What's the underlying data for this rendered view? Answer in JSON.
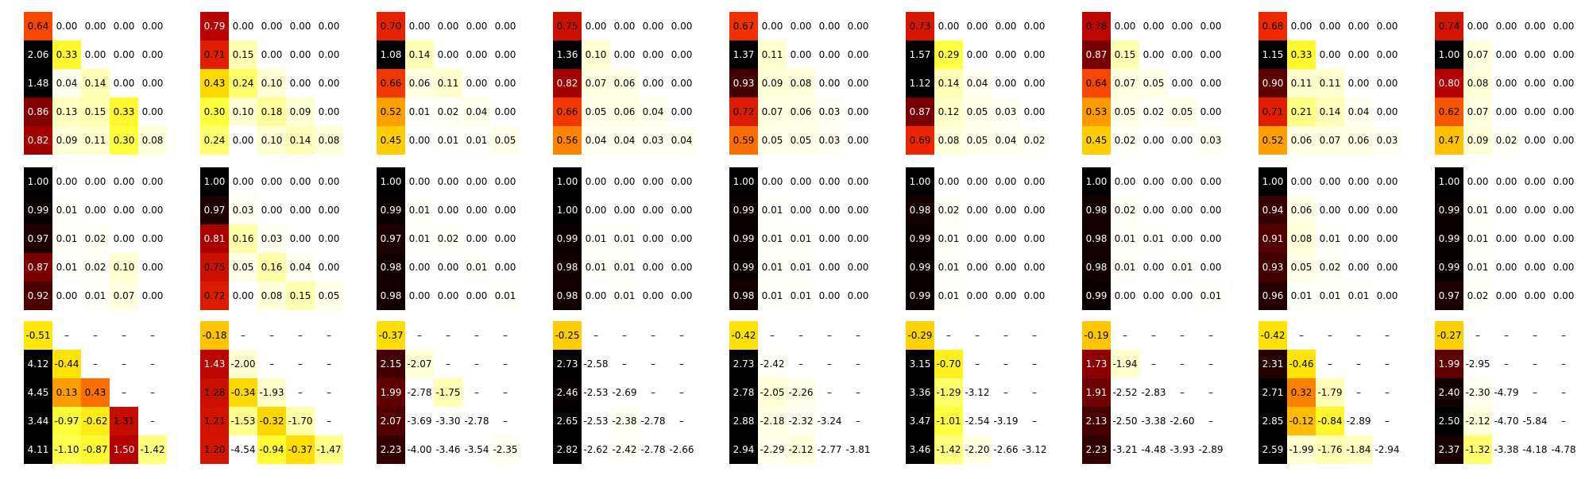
{
  "chart_data": {
    "type": "heatmap",
    "colormap": "hot_r",
    "grid": "3 rows x 9 columns of 5x5 lower-triangular annotated heatmaps",
    "dash_symbol": "–",
    "rows": [
      {
        "color_range": [
          0,
          1
        ],
        "panels": [
          [
            [
              0.64,
              0.0,
              0.0,
              0.0,
              0.0
            ],
            [
              2.06,
              0.33,
              0.0,
              0.0,
              0.0
            ],
            [
              1.48,
              0.04,
              0.14,
              0.0,
              0.0
            ],
            [
              0.86,
              0.13,
              0.15,
              0.33,
              0.0
            ],
            [
              0.82,
              0.09,
              0.11,
              0.3,
              0.08
            ]
          ],
          [
            [
              0.79,
              0.0,
              0.0,
              0.0,
              0.0
            ],
            [
              0.71,
              0.15,
              0.0,
              0.0,
              0.0
            ],
            [
              0.43,
              0.24,
              0.1,
              0.0,
              0.0
            ],
            [
              0.3,
              0.1,
              0.18,
              0.09,
              0.0
            ],
            [
              0.24,
              0.0,
              0.1,
              0.14,
              0.08
            ]
          ],
          [
            [
              0.7,
              0.0,
              0.0,
              0.0,
              0.0
            ],
            [
              1.08,
              0.14,
              0.0,
              0.0,
              0.0
            ],
            [
              0.66,
              0.06,
              0.11,
              0.0,
              0.0
            ],
            [
              0.52,
              0.01,
              0.02,
              0.04,
              0.0
            ],
            [
              0.45,
              0.0,
              0.01,
              0.01,
              0.05
            ]
          ],
          [
            [
              0.75,
              0.0,
              0.0,
              0.0,
              0.0
            ],
            [
              1.36,
              0.1,
              0.0,
              0.0,
              0.0
            ],
            [
              0.82,
              0.07,
              0.06,
              0.0,
              0.0
            ],
            [
              0.66,
              0.05,
              0.06,
              0.04,
              0.0
            ],
            [
              0.56,
              0.04,
              0.04,
              0.03,
              0.04
            ]
          ],
          [
            [
              0.67,
              0.0,
              0.0,
              0.0,
              0.0
            ],
            [
              1.37,
              0.11,
              0.0,
              0.0,
              0.0
            ],
            [
              0.93,
              0.09,
              0.08,
              0.0,
              0.0
            ],
            [
              0.72,
              0.07,
              0.06,
              0.03,
              0.0
            ],
            [
              0.59,
              0.05,
              0.05,
              0.03,
              0.0
            ]
          ],
          [
            [
              0.73,
              0.0,
              0.0,
              0.0,
              0.0
            ],
            [
              1.57,
              0.29,
              0.0,
              0.0,
              0.0
            ],
            [
              1.12,
              0.14,
              0.04,
              0.0,
              0.0
            ],
            [
              0.87,
              0.12,
              0.05,
              0.03,
              0.0
            ],
            [
              0.69,
              0.08,
              0.05,
              0.04,
              0.02
            ]
          ],
          [
            [
              0.78,
              0.0,
              0.0,
              0.0,
              0.0
            ],
            [
              0.87,
              0.15,
              0.0,
              0.0,
              0.0
            ],
            [
              0.64,
              0.07,
              0.05,
              0.0,
              0.0
            ],
            [
              0.53,
              0.05,
              0.02,
              0.05,
              0.0
            ],
            [
              0.45,
              0.02,
              0.0,
              0.0,
              0.03
            ]
          ],
          [
            [
              0.68,
              0.0,
              0.0,
              0.0,
              0.0
            ],
            [
              1.15,
              0.33,
              0.0,
              0.0,
              0.0
            ],
            [
              0.9,
              0.11,
              0.11,
              0.0,
              0.0
            ],
            [
              0.71,
              0.21,
              0.14,
              0.04,
              0.0
            ],
            [
              0.52,
              0.06,
              0.07,
              0.06,
              0.03
            ]
          ],
          [
            [
              0.74,
              0.0,
              0.0,
              0.0,
              0.0
            ],
            [
              1.0,
              0.07,
              0.0,
              0.0,
              0.0
            ],
            [
              0.8,
              0.08,
              0.0,
              0.0,
              0.0
            ],
            [
              0.62,
              0.07,
              0.0,
              0.0,
              0.0
            ],
            [
              0.47,
              0.09,
              0.02,
              0.0,
              0.0
            ]
          ]
        ]
      },
      {
        "color_range": [
          0,
          1
        ],
        "panels": [
          [
            [
              1.0,
              0.0,
              0.0,
              0.0,
              0.0
            ],
            [
              0.99,
              0.01,
              0.0,
              0.0,
              0.0
            ],
            [
              0.97,
              0.01,
              0.02,
              0.0,
              0.0
            ],
            [
              0.87,
              0.01,
              0.02,
              0.1,
              0.0
            ],
            [
              0.92,
              0.0,
              0.01,
              0.07,
              0.0
            ]
          ],
          [
            [
              1.0,
              0.0,
              0.0,
              0.0,
              0.0
            ],
            [
              0.97,
              0.03,
              0.0,
              0.0,
              0.0
            ],
            [
              0.81,
              0.16,
              0.03,
              0.0,
              0.0
            ],
            [
              0.75,
              0.05,
              0.16,
              0.04,
              0.0
            ],
            [
              0.72,
              0.0,
              0.08,
              0.15,
              0.05
            ]
          ],
          [
            [
              1.0,
              0.0,
              0.0,
              0.0,
              0.0
            ],
            [
              0.99,
              0.01,
              0.0,
              0.0,
              0.0
            ],
            [
              0.97,
              0.01,
              0.02,
              0.0,
              0.0
            ],
            [
              0.98,
              0.0,
              0.0,
              0.01,
              0.0
            ],
            [
              0.98,
              0.0,
              0.0,
              0.0,
              0.01
            ]
          ],
          [
            [
              1.0,
              0.0,
              0.0,
              0.0,
              0.0
            ],
            [
              1.0,
              0.0,
              0.0,
              0.0,
              0.0
            ],
            [
              0.99,
              0.01,
              0.01,
              0.0,
              0.0
            ],
            [
              0.98,
              0.01,
              0.01,
              0.0,
              0.0
            ],
            [
              0.98,
              0.0,
              0.01,
              0.0,
              0.0
            ]
          ],
          [
            [
              1.0,
              0.0,
              0.0,
              0.0,
              0.0
            ],
            [
              0.99,
              0.01,
              0.0,
              0.0,
              0.0
            ],
            [
              0.99,
              0.01,
              0.01,
              0.0,
              0.0
            ],
            [
              0.99,
              0.01,
              0.01,
              0.0,
              0.0
            ],
            [
              0.98,
              0.01,
              0.01,
              0.0,
              0.0
            ]
          ],
          [
            [
              1.0,
              0.0,
              0.0,
              0.0,
              0.0
            ],
            [
              0.98,
              0.02,
              0.0,
              0.0,
              0.0
            ],
            [
              0.99,
              0.01,
              0.0,
              0.0,
              0.0
            ],
            [
              0.99,
              0.01,
              0.0,
              0.0,
              0.0
            ],
            [
              0.99,
              0.01,
              0.0,
              0.0,
              0.0
            ]
          ],
          [
            [
              1.0,
              0.0,
              0.0,
              0.0,
              0.0
            ],
            [
              0.98,
              0.02,
              0.0,
              0.0,
              0.0
            ],
            [
              0.98,
              0.01,
              0.01,
              0.0,
              0.0
            ],
            [
              0.98,
              0.01,
              0.0,
              0.01,
              0.0
            ],
            [
              0.99,
              0.0,
              0.0,
              0.0,
              0.01
            ]
          ],
          [
            [
              1.0,
              0.0,
              0.0,
              0.0,
              0.0
            ],
            [
              0.94,
              0.06,
              0.0,
              0.0,
              0.0
            ],
            [
              0.91,
              0.08,
              0.01,
              0.0,
              0.0
            ],
            [
              0.93,
              0.05,
              0.02,
              0.0,
              0.0
            ],
            [
              0.96,
              0.01,
              0.01,
              0.01,
              0.0
            ]
          ],
          [
            [
              1.0,
              0.0,
              0.0,
              0.0,
              0.0
            ],
            [
              0.99,
              0.01,
              0.0,
              0.0,
              0.0
            ],
            [
              0.99,
              0.01,
              0.0,
              0.0,
              0.0
            ],
            [
              0.99,
              0.01,
              0.0,
              0.0,
              0.0
            ],
            [
              0.97,
              0.02,
              0.0,
              0.0,
              0.0
            ]
          ]
        ]
      },
      {
        "color_range": [
          -2.5,
          2.5
        ],
        "panels": [
          [
            [
              -0.51,
              null,
              null,
              null,
              null
            ],
            [
              4.12,
              -0.44,
              null,
              null,
              null
            ],
            [
              4.45,
              0.13,
              0.43,
              null,
              null
            ],
            [
              3.44,
              -0.97,
              -0.62,
              1.31,
              null
            ],
            [
              4.11,
              -1.1,
              -0.87,
              1.5,
              -1.42
            ]
          ],
          [
            [
              -0.18,
              null,
              null,
              null,
              null
            ],
            [
              1.43,
              -2.0,
              null,
              null,
              null
            ],
            [
              1.28,
              -0.34,
              -1.93,
              null,
              null
            ],
            [
              1.21,
              -1.53,
              -0.32,
              -1.7,
              null
            ],
            [
              1.2,
              -4.54,
              -0.94,
              -0.37,
              -1.47
            ]
          ],
          [
            [
              -0.37,
              null,
              null,
              null,
              null
            ],
            [
              2.15,
              -2.07,
              null,
              null,
              null
            ],
            [
              1.99,
              -2.78,
              -1.75,
              null,
              null
            ],
            [
              2.07,
              -3.69,
              -3.3,
              -2.78,
              null
            ],
            [
              2.23,
              -4.0,
              -3.46,
              -3.54,
              -2.35
            ]
          ],
          [
            [
              -0.25,
              null,
              null,
              null,
              null
            ],
            [
              2.73,
              -2.58,
              null,
              null,
              null
            ],
            [
              2.46,
              -2.53,
              -2.69,
              null,
              null
            ],
            [
              2.65,
              -2.53,
              -2.38,
              -2.78,
              null
            ],
            [
              2.82,
              -2.62,
              -2.42,
              -2.78,
              -2.66
            ]
          ],
          [
            [
              -0.42,
              null,
              null,
              null,
              null
            ],
            [
              2.73,
              -2.42,
              null,
              null,
              null
            ],
            [
              2.78,
              -2.05,
              -2.26,
              null,
              null
            ],
            [
              2.88,
              -2.18,
              -2.32,
              -3.24,
              null
            ],
            [
              2.94,
              -2.29,
              -2.12,
              -2.77,
              -3.81
            ]
          ],
          [
            [
              -0.29,
              null,
              null,
              null,
              null
            ],
            [
              3.15,
              -0.7,
              null,
              null,
              null
            ],
            [
              3.36,
              -1.29,
              -3.12,
              null,
              null
            ],
            [
              3.47,
              -1.01,
              -2.54,
              -3.19,
              null
            ],
            [
              3.46,
              -1.42,
              -2.2,
              -2.66,
              -3.12
            ]
          ],
          [
            [
              -0.19,
              null,
              null,
              null,
              null
            ],
            [
              1.73,
              -1.94,
              null,
              null,
              null
            ],
            [
              1.91,
              -2.52,
              -2.83,
              null,
              null
            ],
            [
              2.13,
              -2.5,
              -3.38,
              -2.6,
              null
            ],
            [
              2.23,
              -3.21,
              -4.48,
              -3.93,
              -2.89
            ]
          ],
          [
            [
              -0.42,
              null,
              null,
              null,
              null
            ],
            [
              2.31,
              -0.46,
              null,
              null,
              null
            ],
            [
              2.71,
              0.32,
              -1.79,
              null,
              null
            ],
            [
              2.85,
              -0.12,
              -0.84,
              -2.89,
              null
            ],
            [
              2.59,
              -1.99,
              -1.76,
              -1.84,
              -2.94
            ]
          ],
          [
            [
              -0.27,
              null,
              null,
              null,
              null
            ],
            [
              1.99,
              -2.95,
              null,
              null,
              null
            ],
            [
              2.4,
              -2.3,
              -4.79,
              null,
              null
            ],
            [
              2.5,
              -2.12,
              -4.7,
              -5.84,
              null
            ],
            [
              2.37,
              -1.32,
              -3.38,
              -4.18,
              -4.78
            ]
          ]
        ]
      }
    ]
  }
}
